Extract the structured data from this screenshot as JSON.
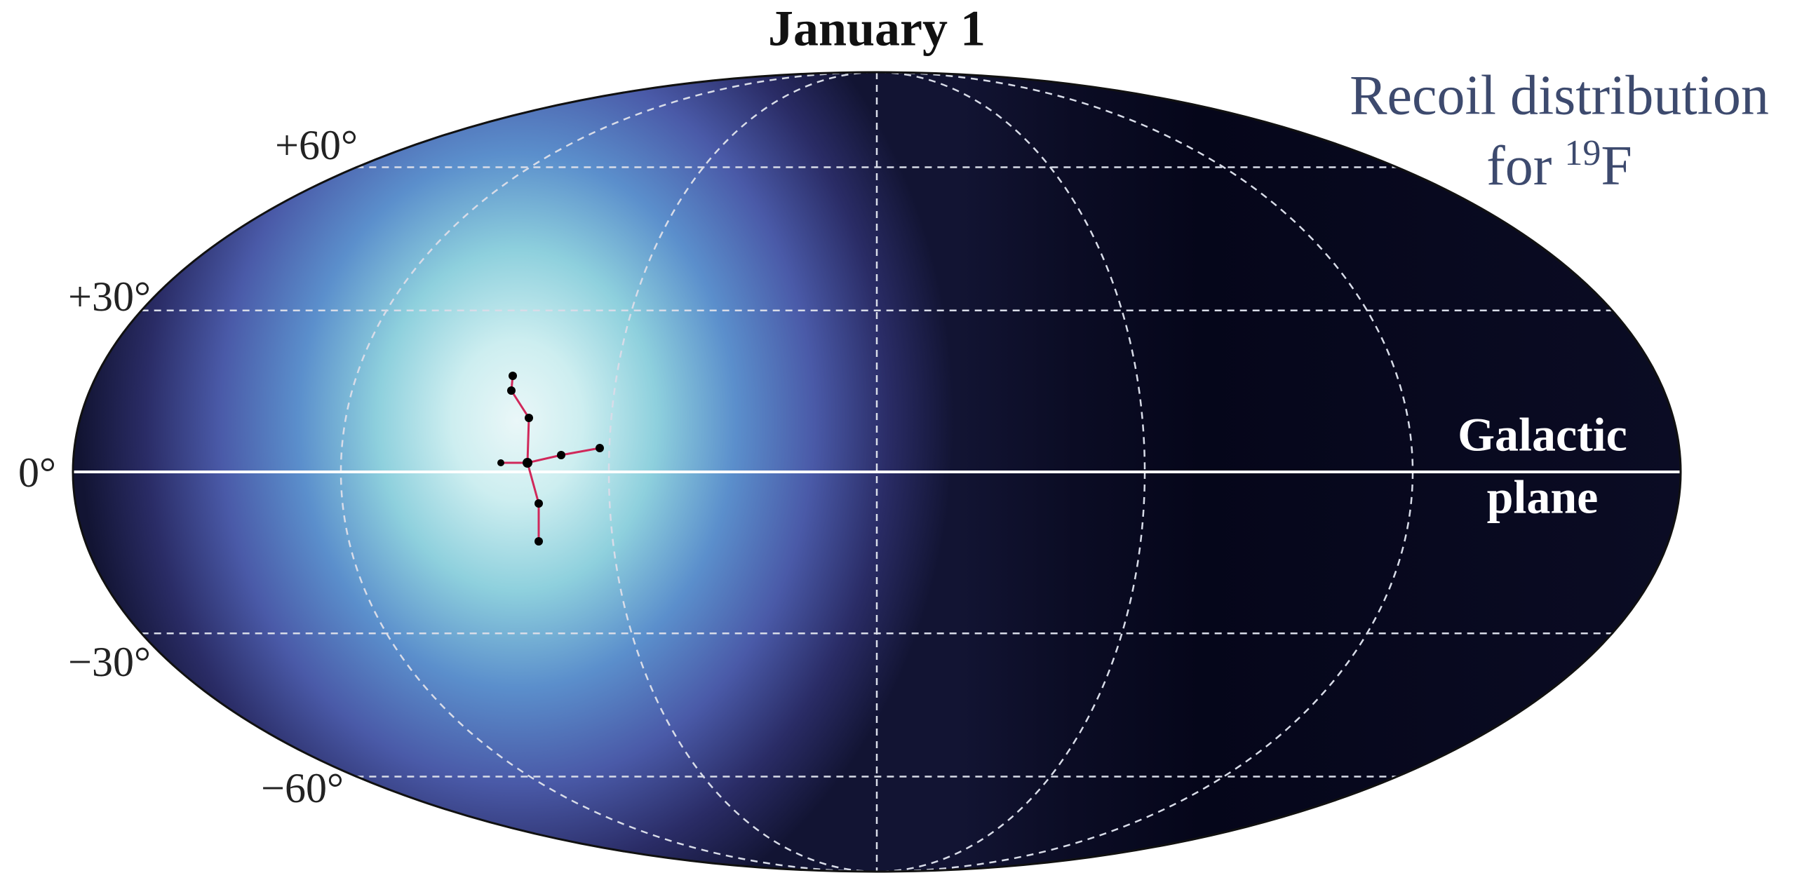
{
  "title": "January 1",
  "latitude_labels": [
    "+60°",
    "+30°",
    "0°",
    "−30°",
    "−60°"
  ],
  "galactic_plane_label": [
    "Galactic",
    "plane"
  ],
  "recoil_label": {
    "line1": "Recoil distribution",
    "line2_prefix": "for",
    "superscript": "19",
    "element": "F"
  }
}
